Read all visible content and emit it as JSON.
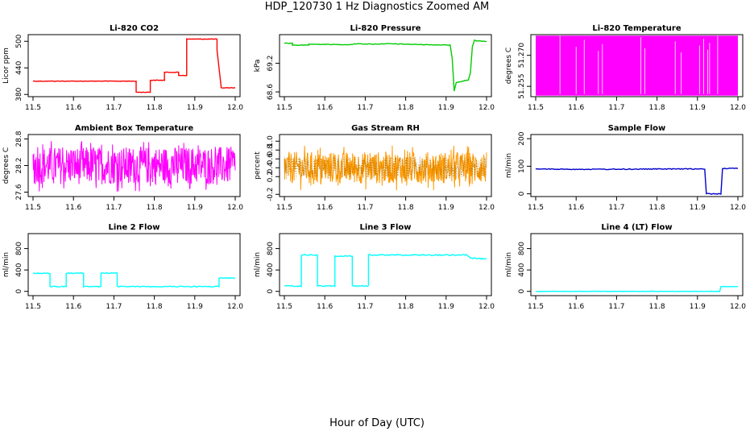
{
  "page": {
    "title": "HDP_120730  1 Hz Diagnostics Zoomed AM",
    "xlabel": "Hour of Day (UTC)"
  },
  "chart_data": [
    {
      "type": "line",
      "title": "Li-820 CO2",
      "xlabel": "",
      "ylabel": "Licor ppm",
      "xlim": [
        11.5,
        12.0
      ],
      "ylim": [
        375,
        515
      ],
      "x_ticks": [
        "11.5",
        "11.6",
        "11.7",
        "11.8",
        "11.9",
        "12.0"
      ],
      "y_ticks": [
        380,
        440,
        500
      ],
      "y_tick_labels": [
        "380",
        "440",
        "500"
      ],
      "color": "#ff0000",
      "noise": 0.6,
      "series": [
        {
          "x": [
            11.5,
            11.755,
            11.755,
            11.79,
            11.79,
            11.825,
            11.825,
            11.86,
            11.86,
            11.88,
            11.88,
            11.955,
            11.955,
            11.965,
            11.965,
            12.0
          ],
          "values": [
            410,
            410,
            385,
            385,
            412,
            412,
            430,
            430,
            423,
            423,
            505,
            505,
            480,
            398,
            395,
            395
          ]
        }
      ]
    },
    {
      "type": "line",
      "title": "Li-820 Pressure",
      "xlabel": "",
      "ylabel": "kPa",
      "xlim": [
        11.5,
        12.0
      ],
      "ylim": [
        68.5,
        69.8
      ],
      "x_ticks": [
        "11.5",
        "11.6",
        "11.7",
        "11.8",
        "11.9",
        "12.0"
      ],
      "y_ticks": [
        68.6,
        69.2
      ],
      "y_tick_labels": [
        "68.6",
        "69.2"
      ],
      "color": "#00cc00",
      "noise": 0.006,
      "series": [
        {
          "x": [
            11.5,
            11.52,
            11.52,
            11.56,
            11.56,
            11.66,
            11.68,
            11.72,
            11.75,
            11.8,
            11.85,
            11.91,
            11.915,
            11.918,
            11.92,
            11.925,
            11.955,
            11.96,
            11.965,
            11.97,
            11.975,
            12.0
          ],
          "values": [
            69.62,
            69.62,
            69.58,
            69.58,
            69.6,
            69.59,
            69.61,
            69.6,
            69.61,
            69.6,
            69.59,
            69.58,
            69.3,
            68.9,
            68.62,
            68.8,
            68.85,
            69.0,
            69.55,
            69.68,
            69.67,
            69.66
          ]
        }
      ]
    },
    {
      "type": "line",
      "title": "Li-820 Temperature",
      "xlabel": "",
      "ylabel": "degrees C",
      "xlim": [
        11.5,
        12.0
      ],
      "ylim": [
        51.25,
        51.28
      ],
      "x_ticks": [
        "11.5",
        "11.6",
        "11.7",
        "11.8",
        "11.9",
        "12.0"
      ],
      "y_ticks": [
        51.255,
        51.27
      ],
      "y_tick_labels": [
        "51.255",
        "51.270"
      ],
      "color": "#ff00ff",
      "render": "band",
      "band": [
        51.2505,
        51.2795
      ],
      "gaps": [
        11.56,
        11.6,
        11.62,
        11.655,
        11.665,
        11.76,
        11.77,
        11.845,
        11.86,
        11.905,
        11.915,
        11.925,
        11.93,
        11.95
      ],
      "series": []
    },
    {
      "type": "line",
      "title": "Ambient Box Temperature",
      "xlabel": "",
      "ylabel": "degrees C",
      "xlim": [
        11.5,
        12.0
      ],
      "ylim": [
        27.5,
        28.9
      ],
      "x_ticks": [
        "11.5",
        "11.6",
        "11.7",
        "11.8",
        "11.9",
        "12.0"
      ],
      "y_ticks": [
        27.6,
        28.2,
        28.8
      ],
      "y_tick_labels": [
        "27.6",
        "28.2",
        "28.8"
      ],
      "color": "#ff00ff",
      "render": "noise",
      "noise_center": 28.2,
      "noise_range": [
        27.7,
        28.7
      ],
      "series": []
    },
    {
      "type": "line",
      "title": "Gas Stream RH",
      "xlabel": "",
      "ylabel": "percent",
      "xlim": [
        11.5,
        12.0
      ],
      "ylim": [
        -0.25,
        1.15
      ],
      "x_ticks": [
        "11.5",
        "11.6",
        "11.7",
        "11.8",
        "11.9",
        "12.0"
      ],
      "y_ticks": [
        -0.2,
        0.2,
        0.4,
        0.6,
        0.8,
        1.0
      ],
      "y_tick_labels": [
        "-0.2",
        "0.2",
        "0.4",
        "0.6",
        "0.8",
        "1.0"
      ],
      "color": "#ff9900",
      "color2": "#996600",
      "render": "noise",
      "noise_center": 0.4,
      "noise_range": [
        0.0,
        0.85
      ],
      "series": []
    },
    {
      "type": "line",
      "title": "Sample Flow",
      "xlabel": "",
      "ylabel": "ml/min",
      "xlim": [
        11.5,
        12.0
      ],
      "ylim": [
        -10,
        215
      ],
      "x_ticks": [
        "11.5",
        "11.6",
        "11.7",
        "11.8",
        "11.9",
        "12.0"
      ],
      "y_ticks": [
        0,
        100,
        200
      ],
      "y_tick_labels": [
        "0",
        "100",
        "200"
      ],
      "color": "#0000cc",
      "noise": 1.5,
      "series": [
        {
          "x": [
            11.5,
            11.6,
            11.7,
            11.8,
            11.918,
            11.922,
            11.958,
            11.962,
            12.0
          ],
          "values": [
            90,
            89,
            89,
            90,
            90,
            0,
            0,
            92,
            92
          ]
        }
      ]
    },
    {
      "type": "line",
      "title": "Line 2 Flow",
      "xlabel": "",
      "ylabel": "ml/min",
      "xlim": [
        11.5,
        12.0
      ],
      "ylim": [
        -80,
        1080
      ],
      "x_ticks": [
        "11.5",
        "11.6",
        "11.7",
        "11.8",
        "11.9",
        "12.0"
      ],
      "y_ticks": [
        0,
        400,
        800
      ],
      "y_tick_labels": [
        "0",
        "400",
        "800"
      ],
      "color": "#00ffff",
      "noise": 8,
      "series": [
        {
          "x": [
            11.5,
            11.542,
            11.542,
            11.582,
            11.582,
            11.625,
            11.625,
            11.668,
            11.668,
            11.708,
            11.708,
            11.96,
            11.96,
            12.0
          ],
          "values": [
            340,
            340,
            90,
            90,
            340,
            340,
            90,
            90,
            340,
            340,
            90,
            90,
            250,
            250
          ]
        }
      ]
    },
    {
      "type": "line",
      "title": "Line 3 Flow",
      "xlabel": "",
      "ylabel": "ml/min",
      "xlim": [
        11.5,
        12.0
      ],
      "ylim": [
        -80,
        1080
      ],
      "x_ticks": [
        "11.5",
        "11.6",
        "11.7",
        "11.8",
        "11.9",
        "12.0"
      ],
      "y_ticks": [
        0,
        400,
        800
      ],
      "y_tick_labels": [
        "0",
        "400",
        "800"
      ],
      "color": "#00ffff",
      "noise": 10,
      "series": [
        {
          "x": [
            11.5,
            11.542,
            11.542,
            11.582,
            11.582,
            11.625,
            11.625,
            11.668,
            11.668,
            11.708,
            11.708,
            11.95,
            11.96,
            12.0
          ],
          "values": [
            100,
            100,
            680,
            680,
            100,
            100,
            660,
            660,
            100,
            100,
            680,
            680,
            620,
            610
          ]
        }
      ]
    },
    {
      "type": "line",
      "title": "Line 4 (LT) Flow",
      "xlabel": "",
      "ylabel": "ml/min",
      "xlim": [
        11.5,
        12.0
      ],
      "ylim": [
        -80,
        1080
      ],
      "x_ticks": [
        "11.5",
        "11.6",
        "11.7",
        "11.8",
        "11.9",
        "12.0"
      ],
      "y_ticks": [
        0,
        400,
        800
      ],
      "y_tick_labels": [
        "0",
        "400",
        "800"
      ],
      "color": "#00ffff",
      "noise": 3,
      "series": [
        {
          "x": [
            11.5,
            11.955,
            11.958,
            12.0
          ],
          "values": [
            0,
            0,
            90,
            90
          ]
        }
      ]
    }
  ]
}
